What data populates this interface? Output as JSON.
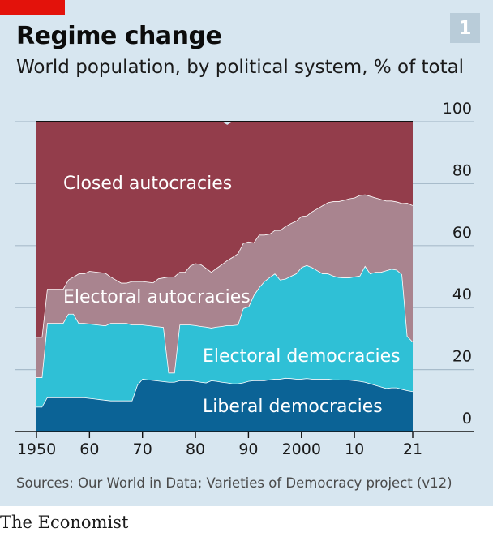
{
  "header": {
    "title": "Regime change",
    "subtitle": "World population, by political system, % of total",
    "chart_number": "1"
  },
  "source": "Sources: Our World in Data; Varieties of Democracy project (v12)",
  "footer": "The Economist",
  "colors": {
    "liberal_democracies": "#0b6396",
    "electoral_democracies": "#2fc0d6",
    "electoral_autocracies": "#a9848f",
    "closed_autocracies": "#933d4b",
    "background": "#d7e6f0",
    "accent": "#e3120b"
  },
  "chart_data": {
    "type": "area",
    "stacked": true,
    "title": "Regime change",
    "subtitle": "World population, by political system, % of total",
    "xlim": [
      1950,
      2021
    ],
    "ylim": [
      0,
      100
    ],
    "x_ticks": [
      "1950",
      "60",
      "70",
      "80",
      "90",
      "2000",
      "10",
      "21"
    ],
    "y_ticks": [
      "0",
      "20",
      "40",
      "60",
      "80",
      "100"
    ],
    "y_axis_position": "right",
    "grid": true,
    "x": [
      1950,
      1951,
      1952,
      1953,
      1954,
      1955,
      1956,
      1957,
      1958,
      1959,
      1960,
      1961,
      1962,
      1963,
      1964,
      1965,
      1966,
      1967,
      1968,
      1969,
      1970,
      1971,
      1972,
      1973,
      1974,
      1975,
      1976,
      1977,
      1978,
      1979,
      1980,
      1981,
      1982,
      1983,
      1984,
      1985,
      1986,
      1987,
      1988,
      1989,
      1990,
      1991,
      1992,
      1993,
      1994,
      1995,
      1996,
      1997,
      1998,
      1999,
      2000,
      2001,
      2002,
      2003,
      2004,
      2005,
      2006,
      2007,
      2008,
      2009,
      2010,
      2011,
      2012,
      2013,
      2014,
      2015,
      2016,
      2017,
      2018,
      2019,
      2020,
      2021
    ],
    "series": [
      {
        "name": "Liberal democracies",
        "values": [
          8,
          8,
          11,
          11,
          11,
          11,
          11,
          11,
          11,
          11,
          10.8,
          10.6,
          10.4,
          10.2,
          10,
          10,
          10,
          10,
          10,
          15,
          17,
          16.8,
          16.6,
          16.4,
          16.2,
          16,
          16,
          16.5,
          16.5,
          16.5,
          16.3,
          16,
          15.8,
          16.5,
          16.3,
          16,
          15.8,
          15.5,
          15.5,
          15.8,
          16.3,
          16.5,
          16.5,
          16.5,
          16.8,
          17,
          17,
          17.3,
          17.2,
          17,
          17,
          17.2,
          17,
          17,
          17,
          17,
          16.8,
          16.8,
          16.7,
          16.7,
          16.5,
          16.3,
          16,
          15.5,
          15,
          14.5,
          14,
          14.2,
          14.2,
          13.7,
          13.3,
          13
        ],
        "label": "Liberal democracies"
      },
      {
        "name": "Electoral democracies",
        "values": [
          9.5,
          9.5,
          24,
          24,
          24,
          24,
          27,
          27,
          24,
          24,
          24,
          24,
          24,
          24,
          25,
          25,
          25,
          25,
          24.5,
          19.5,
          17.5,
          17.5,
          17.5,
          17.5,
          17.5,
          3,
          3,
          18,
          18,
          18,
          18,
          18,
          18,
          17,
          17.5,
          18,
          18.5,
          18.8,
          19,
          24,
          24,
          27.5,
          30,
          32,
          33,
          34,
          32,
          32,
          33,
          34,
          36,
          36.5,
          36,
          35,
          34,
          34,
          33.5,
          33,
          33,
          33,
          33.5,
          34,
          37.5,
          35.5,
          36.5,
          37,
          38,
          38.3,
          38,
          37,
          17.5,
          16
        ],
        "label": "Electoral democracies"
      },
      {
        "name": "Electoral autocracies",
        "values": [
          13,
          13,
          11,
          11,
          11,
          11,
          11,
          12,
          16,
          16,
          17,
          17,
          17,
          17,
          15,
          14,
          13,
          13,
          14,
          14,
          14,
          14,
          14,
          15.5,
          16,
          31,
          31,
          17,
          17,
          19,
          20,
          20,
          19,
          18,
          19,
          20,
          21,
          22,
          23,
          21,
          21,
          17,
          17,
          15,
          14,
          14,
          16,
          17,
          17,
          17,
          16.5,
          16,
          18,
          20,
          22,
          23,
          24,
          24.5,
          25,
          25.5,
          25.5,
          26,
          23,
          25,
          24,
          23.5,
          22.5,
          22,
          22,
          23,
          43,
          44
        ]
      },
      {
        "name": "Closed autocracies",
        "values": [
          69.5,
          69.5,
          54,
          54,
          54,
          54,
          51,
          50,
          49,
          49,
          48.2,
          48.4,
          48.6,
          48.8,
          50,
          51,
          52,
          52,
          51.5,
          51.5,
          51.5,
          51.7,
          51.9,
          50.6,
          50.3,
          50,
          50,
          48.5,
          48.5,
          46.5,
          45.7,
          46,
          47.2,
          48.5,
          47.2,
          46,
          43.7,
          43.7,
          42.5,
          39.2,
          38.7,
          39,
          36.5,
          36.5,
          36.2,
          35,
          35,
          33.7,
          32.8,
          32,
          30.5,
          30.3,
          29,
          28,
          27,
          26,
          25.7,
          25.7,
          25.3,
          24.8,
          24.5,
          23.7,
          23.5,
          24,
          24.5,
          25,
          25.5,
          25.5,
          25.8,
          26.3,
          26.2,
          27
        ],
        "label": "Closed autocracies"
      }
    ]
  }
}
